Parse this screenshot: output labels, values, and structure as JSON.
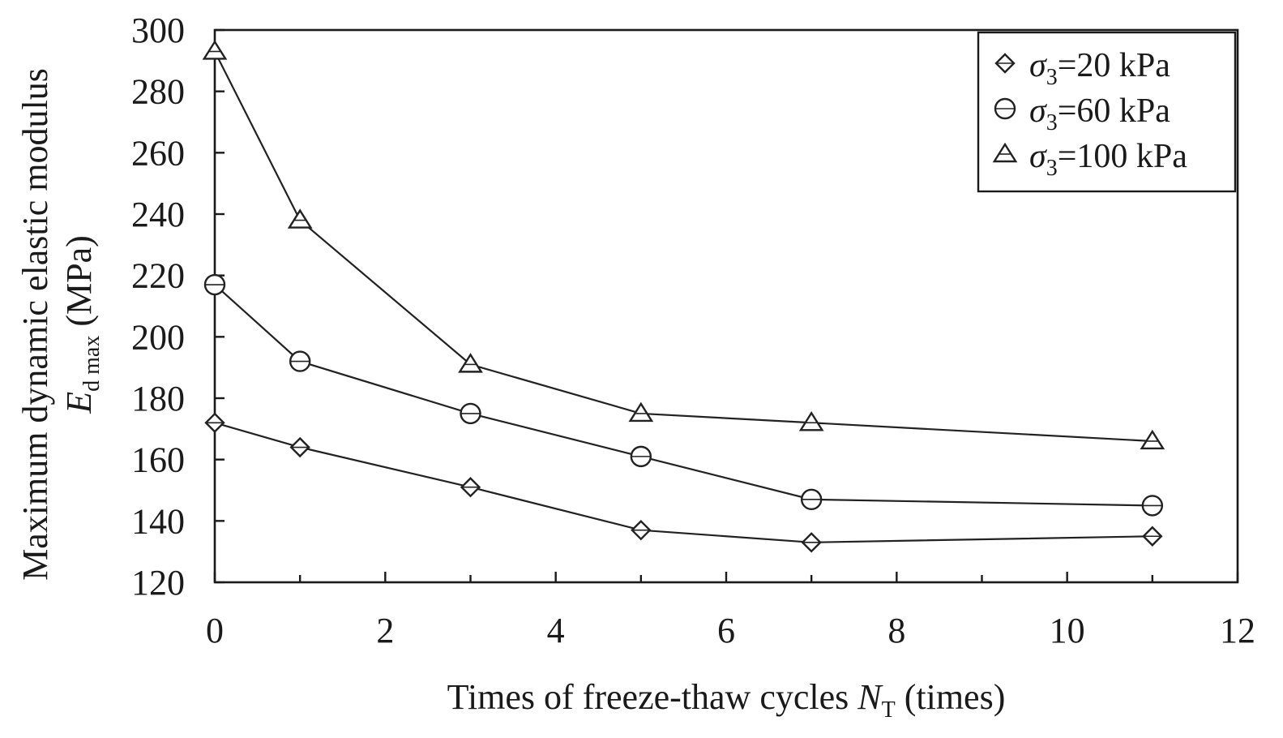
{
  "chart_data": {
    "type": "line",
    "xlabel": {
      "main": "Times of freeze-thaw cycles ",
      "var": "N",
      "sub": "T",
      "unit": " (times)"
    },
    "ylabel": {
      "line1": "Maximum dynamic elastic modulus",
      "var": "E",
      "sub": "d max",
      "unit": " (MPa)"
    },
    "xlim": [
      0,
      12
    ],
    "ylim": [
      120,
      300
    ],
    "xticks": [
      0,
      2,
      4,
      6,
      8,
      10,
      12
    ],
    "yticks": [
      120,
      140,
      160,
      180,
      200,
      220,
      240,
      260,
      280,
      300
    ],
    "x": [
      0,
      1,
      3,
      5,
      7,
      11
    ],
    "grid": false,
    "legend_position": "top-right",
    "series": [
      {
        "symbol": "σ",
        "sub": "3",
        "suffix": "=20 kPa",
        "marker": "diamond",
        "values": [
          172,
          164,
          151,
          137,
          133,
          135
        ]
      },
      {
        "symbol": "σ",
        "sub": "3",
        "suffix": "=60 kPa",
        "marker": "circle",
        "values": [
          217,
          192,
          175,
          161,
          147,
          145
        ]
      },
      {
        "symbol": "σ",
        "sub": "3",
        "suffix": "=100 kPa",
        "marker": "triangle",
        "values": [
          293,
          238,
          191,
          175,
          172,
          166
        ]
      }
    ]
  }
}
